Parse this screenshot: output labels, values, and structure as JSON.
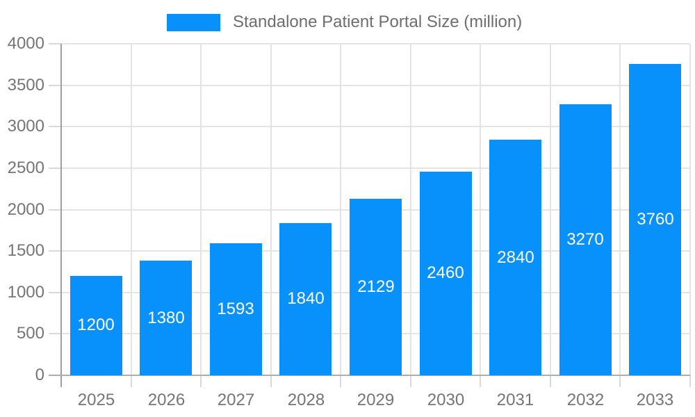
{
  "chart_data": {
    "type": "bar",
    "title": "Standalone Patient Portal Size (million)",
    "categories": [
      "2025",
      "2026",
      "2027",
      "2028",
      "2029",
      "2030",
      "2031",
      "2032",
      "2033"
    ],
    "values": [
      1200,
      1380,
      1593,
      1840,
      2129,
      2460,
      2840,
      3270,
      3760
    ],
    "xlabel": "",
    "ylabel": "",
    "ylim": [
      0,
      4000
    ],
    "yticks": [
      0,
      500,
      1000,
      1500,
      2000,
      2500,
      3000,
      3500,
      4000
    ],
    "grid": true,
    "legend_position": "top-center",
    "bar_color": "#0991fb",
    "value_label_color": "#ffffff",
    "axis_label_color": "#757575",
    "legend_text_color": "#6e6e6e",
    "grid_color": "#e4e4e4",
    "axis_line_color": "#9e9e9e"
  }
}
